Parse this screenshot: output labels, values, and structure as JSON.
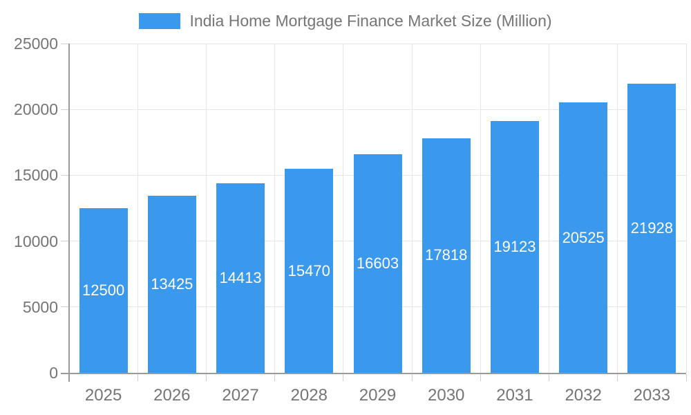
{
  "chart_data": {
    "type": "bar",
    "title": "India Home Mortgage Finance Market Size (Million)",
    "categories": [
      "2025",
      "2026",
      "2027",
      "2028",
      "2029",
      "2030",
      "2031",
      "2032",
      "2033"
    ],
    "values": [
      12500,
      13425,
      14413,
      15470,
      16603,
      17818,
      19123,
      20525,
      21928
    ],
    "xlabel": "",
    "ylabel": "",
    "ylim": [
      0,
      25000
    ],
    "yticks": [
      0,
      5000,
      10000,
      15000,
      20000,
      25000
    ],
    "grid": true,
    "legend_position": "top",
    "value_labels_position": "inside-middle"
  },
  "legend": {
    "label": "India Home Mortgage Finance Market Size (Million)"
  },
  "colors": {
    "bar": "#3b99ed",
    "grid": "#e6e6e6",
    "axis": "#9a9a9a",
    "tick": "#cfcfcf",
    "text": "#757575",
    "value_label": "#ffffff",
    "background": "#ffffff"
  }
}
